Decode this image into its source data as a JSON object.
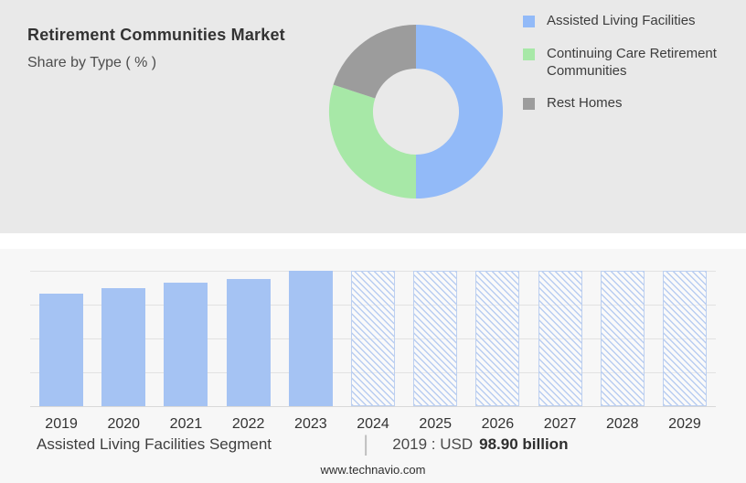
{
  "header": {
    "title": "Retirement Communities Market",
    "subtitle": "Share by Type ( % )"
  },
  "chart_data": [
    {
      "type": "pie",
      "style": "donut",
      "title": "Share by Type ( % )",
      "legend_position": "right",
      "segments": [
        {
          "label": "Assisted Living Facilities",
          "value": 50,
          "color": "#92baf8"
        },
        {
          "label": "Continuing Care Retirement Communities",
          "value": 30,
          "color": "#a7e8a7"
        },
        {
          "label": "Rest Homes",
          "value": 20,
          "color": "#9c9c9c"
        }
      ]
    },
    {
      "type": "bar",
      "categories": [
        "2019",
        "2020",
        "2021",
        "2022",
        "2023",
        "2024",
        "2025",
        "2026",
        "2027",
        "2028",
        "2029"
      ],
      "bars": [
        {
          "year": "2019",
          "height": 0.83,
          "style": "solid"
        },
        {
          "year": "2020",
          "height": 0.87,
          "style": "solid"
        },
        {
          "year": "2021",
          "height": 0.91,
          "style": "solid"
        },
        {
          "year": "2022",
          "height": 0.94,
          "style": "solid"
        },
        {
          "year": "2023",
          "height": 1.0,
          "style": "solid"
        },
        {
          "year": "2024",
          "height": 1.0,
          "style": "hatched"
        },
        {
          "year": "2025",
          "height": 1.0,
          "style": "hatched"
        },
        {
          "year": "2026",
          "height": 1.0,
          "style": "hatched"
        },
        {
          "year": "2027",
          "height": 1.0,
          "style": "hatched"
        },
        {
          "year": "2028",
          "height": 1.0,
          "style": "hatched"
        },
        {
          "year": "2029",
          "height": 1.0,
          "style": "hatched"
        }
      ],
      "bar_color": "#a5c3f3",
      "hatch_color": "#b9cdf1",
      "grid": true,
      "xlabel": "",
      "ylabel": "",
      "known_values": {
        "2019": "USD 98.90 billion"
      }
    }
  ],
  "footnote": {
    "segment_label": "Assisted Living Facilities Segment",
    "separator": "|",
    "value_prefix": "2019 : USD",
    "value_bold": "98.90 billion"
  },
  "footer": {
    "url": "www.technavio.com"
  }
}
